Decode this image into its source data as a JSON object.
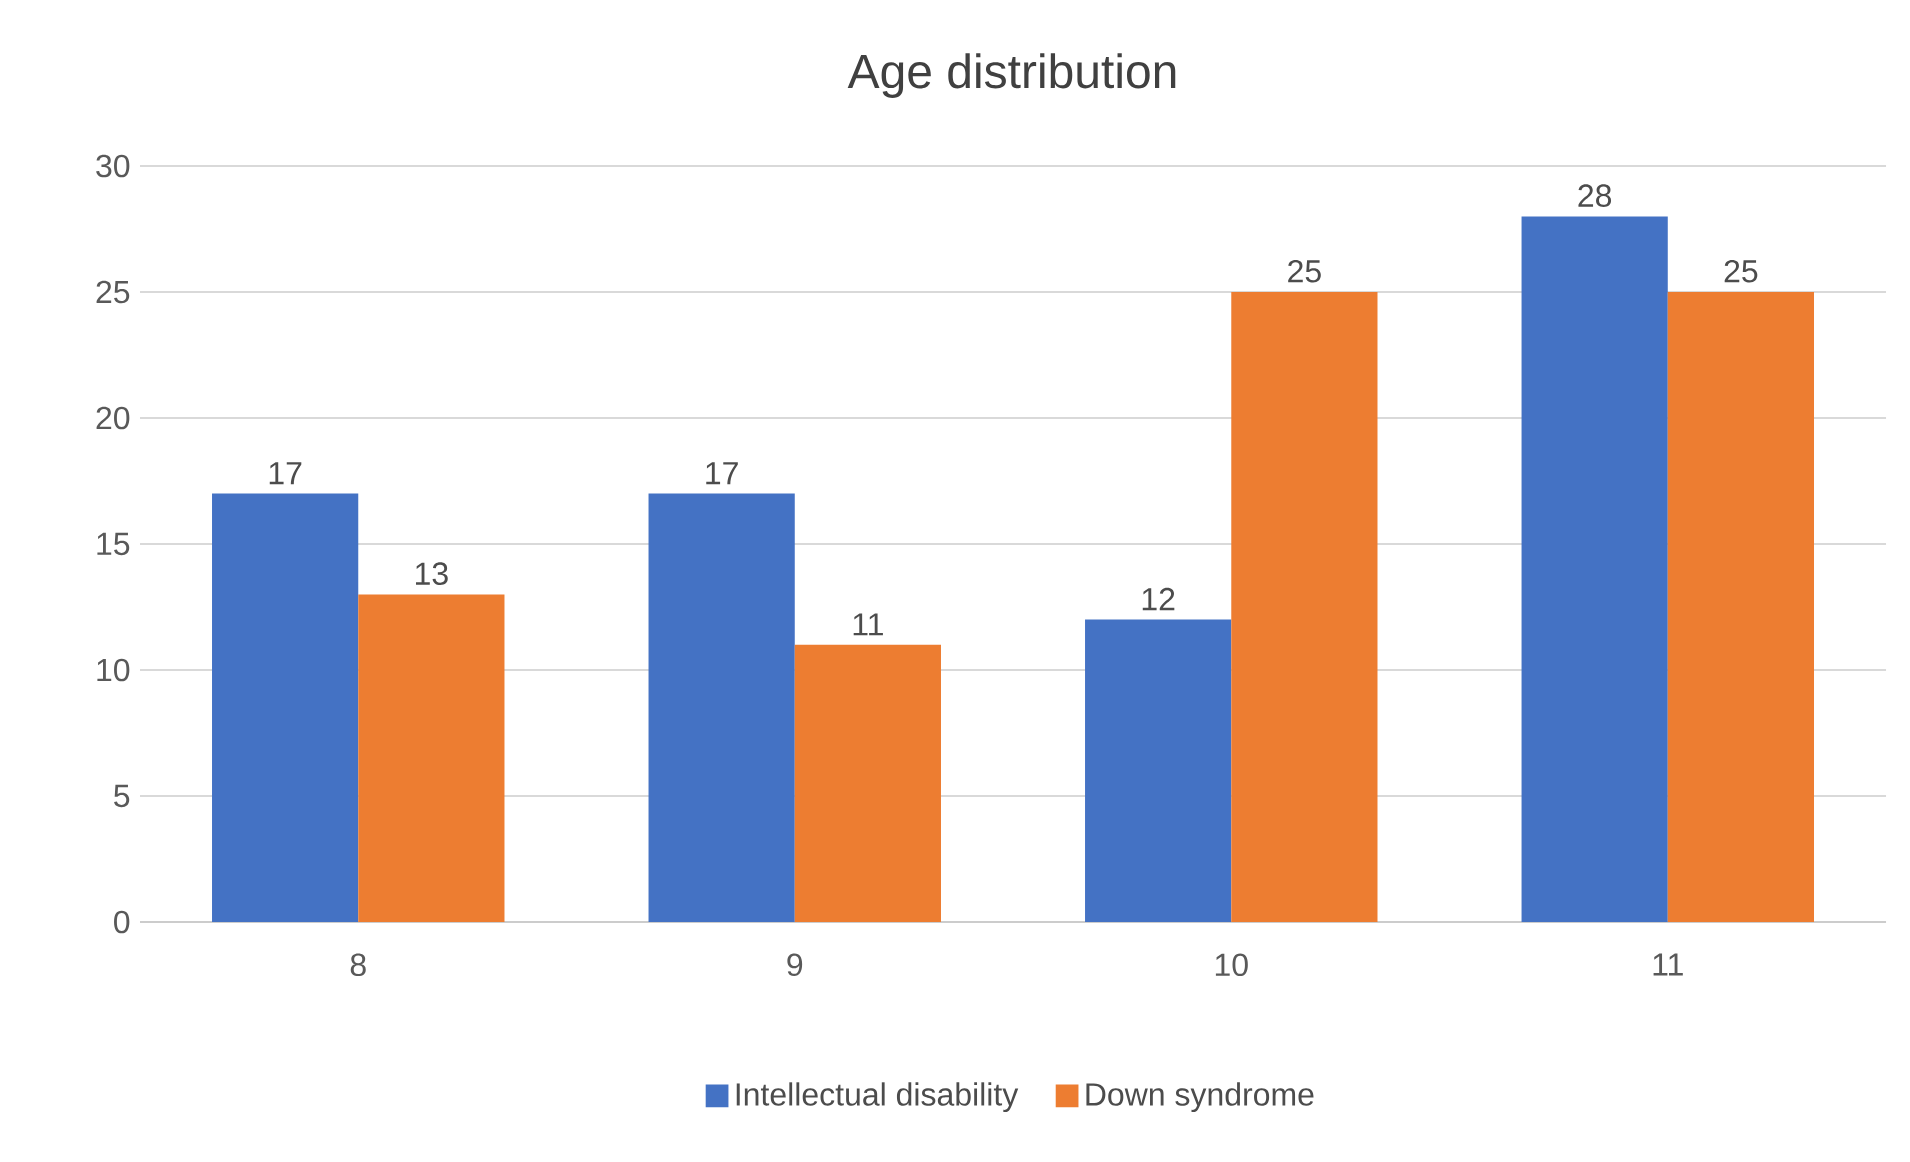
{
  "chart_data": {
    "type": "bar",
    "title": "Age distribution",
    "categories": [
      "8",
      "9",
      "10",
      "11"
    ],
    "series": [
      {
        "name": "Intellectual disability",
        "color": "#4472c4",
        "values": [
          17,
          17,
          12,
          28
        ]
      },
      {
        "name": "Down syndrome",
        "color": "#ed7d31",
        "values": [
          13,
          11,
          25,
          25
        ]
      }
    ],
    "ylim": [
      0,
      30
    ],
    "yticks": [
      0,
      5,
      10,
      15,
      20,
      25,
      30
    ],
    "grid": "y",
    "legend": "bottom",
    "data_labels": true
  }
}
